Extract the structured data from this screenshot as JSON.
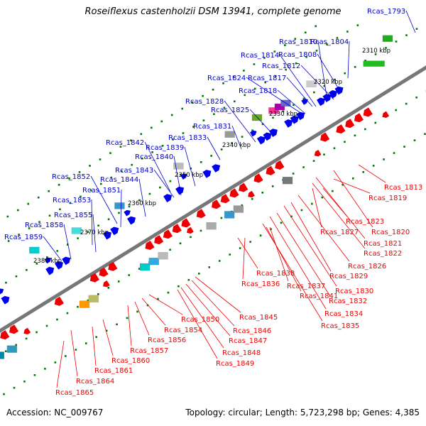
{
  "title": "Roseiflexus castenholzii DSM 13941, complete genome",
  "footer": {
    "accession": "Accession: NC_009767",
    "summary": "Topology: circular; Length: 5,723,298 bp; Genes: 4,385"
  },
  "colors": {
    "forward_label": "#0000cc",
    "reverse_label": "#ee0000",
    "backbone": "#777777",
    "forward_gene": "#0000ee",
    "reverse_gene": "#ee0000",
    "tick_dots": "#007700"
  },
  "ticks": [
    "2310 kbp",
    "2320 kbp",
    "2330 kbp",
    "2340 kbp",
    "2350 kbp",
    "2360 kbp",
    "2370 kbp",
    "2380 kbp"
  ],
  "forward_labels": [
    "Rcas_1793",
    "Rcas_1804",
    "Rcas_1810",
    "Rcas_1808",
    "Rcas_1814",
    "Rcas_1812",
    "Rcas_1824",
    "Rcas_1817",
    "Rcas_1818",
    "Rcas_1828",
    "Rcas_1825",
    "Rcas_1831",
    "Rcas_1833",
    "Rcas_1842",
    "Rcas_1839",
    "Rcas_1840",
    "Rcas_1843",
    "Rcas_1852",
    "Rcas_1844",
    "Rcas_1851",
    "Rcas_1853",
    "Rcas_1855",
    "Rcas_1858",
    "Rcas_1859"
  ],
  "reverse_labels": [
    "Rcas_1813",
    "Rcas_1819",
    "Rcas_1823",
    "Rcas_1827",
    "Rcas_1820",
    "Rcas_1821",
    "Rcas_1822",
    "Rcas_1826",
    "Rcas_1829",
    "Rcas_1830",
    "Rcas_1832",
    "Rcas_1834",
    "Rcas_1835",
    "Rcas_1838",
    "Rcas_1836",
    "Rcas_1837",
    "Rcas_1841",
    "Rcas_1845",
    "Rcas_1846",
    "Rcas_1847",
    "Rcas_1848",
    "Rcas_1849",
    "Rcas_1850",
    "Rcas_1854",
    "Rcas_1856",
    "Rcas_1857",
    "Rcas_1860",
    "Rcas_1861",
    "Rcas_1864",
    "Rcas_1865"
  ]
}
